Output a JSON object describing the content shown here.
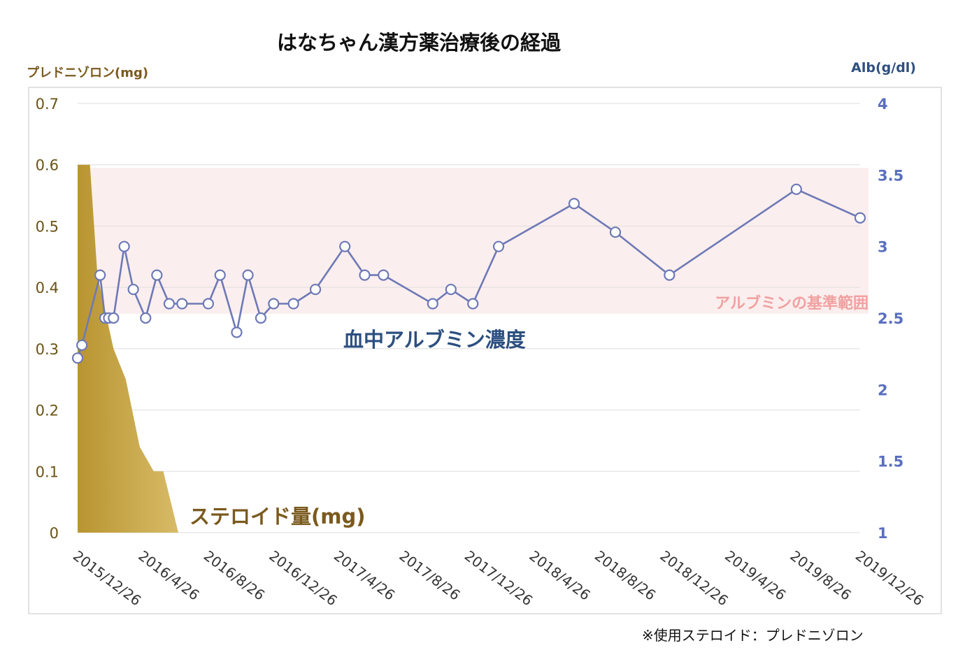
{
  "title": "はなちゃん漢方薬治療後の経過",
  "left_axis_unit": "プレドニゾロン(mg)",
  "right_axis_unit": "Alb(g/dl)",
  "footnote": "※使用ステロイド：プレドニゾロン",
  "colors": {
    "steroid_fill_dark": "#b89530",
    "steroid_fill_light": "#d8bb68",
    "albumin_line": "#6d79b6",
    "reference_band": "#fbeeee",
    "reference_label": "#f2a0a0",
    "albumin_label": "#2c4f80",
    "steroid_label": "#7a5a1e"
  },
  "chart_data": {
    "type": "line",
    "title": "はなちゃん漢方薬治療後の経過",
    "x_ticks": [
      "2015/12/26",
      "2016/4/26",
      "2016/8/26",
      "2016/12/26",
      "2017/4/26",
      "2017/8/26",
      "2017/12/26",
      "2018/4/26",
      "2018/8/26",
      "2018/12/26",
      "2019/4/26",
      "2019/8/26",
      "2019/12/26"
    ],
    "x_range": [
      "2015/12/26",
      "2019/12/26"
    ],
    "left_axis": {
      "label": "プレドニゾロン(mg)",
      "range": [
        0,
        0.7
      ],
      "ticks": [
        "0",
        "0.1",
        "0.2",
        "0.3",
        "0.4",
        "0.5",
        "0.6",
        "0.7"
      ]
    },
    "right_axis": {
      "label": "Alb(g/dl)",
      "range": [
        1,
        4
      ],
      "ticks": [
        "1",
        "1.5",
        "2",
        "2.5",
        "3",
        "3.5",
        "4"
      ]
    },
    "grid": true,
    "reference_band": {
      "label": "アルブミンの基準範囲",
      "from": 2.53,
      "to": 3.55,
      "axis": "right"
    },
    "series": [
      {
        "name": "ステロイド量(mg)",
        "type": "area",
        "axis": "left",
        "points": [
          {
            "x": "2015/12/26",
            "y": 0.6
          },
          {
            "x": "2016/1/18",
            "y": 0.6
          },
          {
            "x": "2016/2/1",
            "y": 0.42
          },
          {
            "x": "2016/3/2",
            "y": 0.3
          },
          {
            "x": "2016/3/25",
            "y": 0.25
          },
          {
            "x": "2016/4/20",
            "y": 0.14
          },
          {
            "x": "2016/5/16",
            "y": 0.1
          },
          {
            "x": "2016/6/3",
            "y": 0.1
          },
          {
            "x": "2016/7/1",
            "y": 0
          }
        ]
      },
      {
        "name": "血中アルブミン濃度",
        "type": "line",
        "axis": "right",
        "points": [
          {
            "x": "2015/12/26",
            "y": 2.22
          },
          {
            "x": "2016/1/3",
            "y": 2.31
          },
          {
            "x": "2016/2/6",
            "y": 2.8
          },
          {
            "x": "2016/2/15",
            "y": 2.5
          },
          {
            "x": "2016/2/22",
            "y": 2.5
          },
          {
            "x": "2016/3/2",
            "y": 2.5
          },
          {
            "x": "2016/3/22",
            "y": 3.0
          },
          {
            "x": "2016/4/8",
            "y": 2.7
          },
          {
            "x": "2016/5/1",
            "y": 2.5
          },
          {
            "x": "2016/5/22",
            "y": 2.8
          },
          {
            "x": "2016/6/14",
            "y": 2.6
          },
          {
            "x": "2016/7/8",
            "y": 2.6
          },
          {
            "x": "2016/8/26",
            "y": 2.6
          },
          {
            "x": "2016/9/17",
            "y": 2.8
          },
          {
            "x": "2016/10/18",
            "y": 2.4
          },
          {
            "x": "2016/11/8",
            "y": 2.8
          },
          {
            "x": "2016/12/2",
            "y": 2.5
          },
          {
            "x": "2016/12/26",
            "y": 2.6
          },
          {
            "x": "2017/2/1",
            "y": 2.6
          },
          {
            "x": "2017/3/14",
            "y": 2.7
          },
          {
            "x": "2017/5/8",
            "y": 3.0
          },
          {
            "x": "2017/6/14",
            "y": 2.8
          },
          {
            "x": "2017/7/19",
            "y": 2.8
          },
          {
            "x": "2017/10/19",
            "y": 2.6
          },
          {
            "x": "2017/11/22",
            "y": 2.7
          },
          {
            "x": "2018/1/2",
            "y": 2.6
          },
          {
            "x": "2018/2/19",
            "y": 3.0
          },
          {
            "x": "2018/7/10",
            "y": 3.3
          },
          {
            "x": "2018/9/25",
            "y": 3.1
          },
          {
            "x": "2019/1/4",
            "y": 2.8
          },
          {
            "x": "2019/8/29",
            "y": 3.4
          },
          {
            "x": "2019/12/26",
            "y": 3.2
          }
        ]
      }
    ]
  }
}
